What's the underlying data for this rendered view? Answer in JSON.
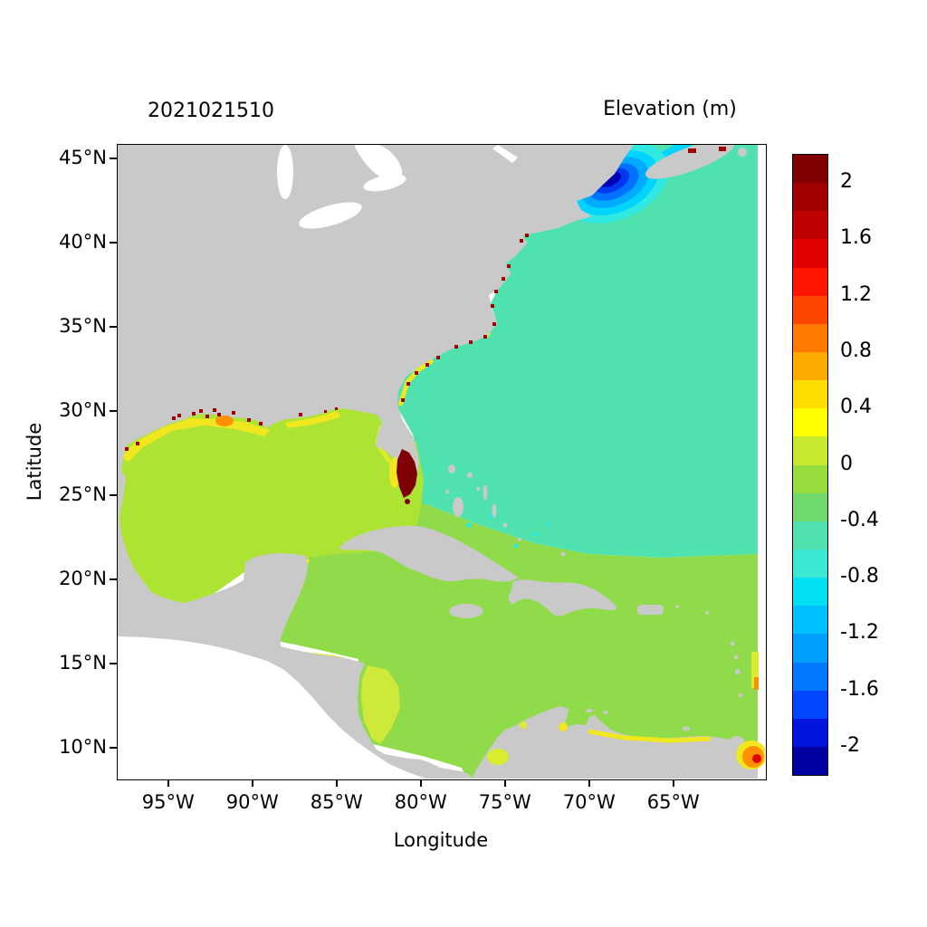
{
  "titles": {
    "timestamp": "2021021510",
    "colorbar_title": "Elevation (m)"
  },
  "axes": {
    "x_label": "Longitude",
    "y_label": "Latitude",
    "x_ticks": [
      {
        "label": "95°W",
        "lon": -95
      },
      {
        "label": "90°W",
        "lon": -90
      },
      {
        "label": "85°W",
        "lon": -85
      },
      {
        "label": "80°W",
        "lon": -80
      },
      {
        "label": "75°W",
        "lon": -75
      },
      {
        "label": "70°W",
        "lon": -70
      },
      {
        "label": "65°W",
        "lon": -65
      }
    ],
    "y_ticks": [
      {
        "label": "45°N",
        "lat": 45
      },
      {
        "label": "40°N",
        "lat": 40
      },
      {
        "label": "35°N",
        "lat": 35
      },
      {
        "label": "30°N",
        "lat": 30
      },
      {
        "label": "25°N",
        "lat": 25
      },
      {
        "label": "20°N",
        "lat": 20
      },
      {
        "label": "15°N",
        "lat": 15
      },
      {
        "label": "10°N",
        "lat": 10
      }
    ]
  },
  "colorbar": {
    "vmin": -2.2,
    "vmax": 2.2,
    "tick_labels": [
      "2",
      "1.6",
      "1.2",
      "0.8",
      "0.4",
      "0",
      "-0.4",
      "-0.8",
      "-1.2",
      "-1.6",
      "-2"
    ],
    "tick_values": [
      2,
      1.6,
      1.2,
      0.8,
      0.4,
      0,
      -0.4,
      -0.8,
      -1.2,
      -1.6,
      -2
    ],
    "segment_colors_top_to_bottom": [
      "#7F0000",
      "#A00000",
      "#C00000",
      "#E00000",
      "#FF1400",
      "#FF4600",
      "#FF7800",
      "#FFAA00",
      "#FFDC00",
      "#FFFF00",
      "#C6E92E",
      "#97DC3F",
      "#6FD96B",
      "#4FE2AF",
      "#3BE8D6",
      "#00E0F0",
      "#00C0FF",
      "#009FFF",
      "#0078FF",
      "#0046FF",
      "#0014E0",
      "#0000A0"
    ]
  },
  "colors": {
    "land": "#C9C9C9",
    "atlantic": "#4FE2AF",
    "caribbean": "#8FDB49",
    "gulf": "#ADE433",
    "shelf_yellow": "#F0E71E",
    "yellow_green": "#D9EC2E",
    "nicaragua_shelf": "#CFE93A",
    "orange": "#FF9000",
    "red": "#E30000",
    "dark_red": "#A00000",
    "maroon": "#7F0000",
    "cyan": "#2BE8E0",
    "maine_blue_1": "#2FE9E2",
    "maine_blue_2": "#00D4FF",
    "maine_blue_3": "#00AAFF",
    "maine_blue_4": "#0072FF",
    "maine_blue_5": "#0038F0",
    "maine_blue_6": "#0000B4",
    "lake_white": "#FFFFFF",
    "background_white": "#FFFFFF"
  },
  "chart_data": {
    "type": "heatmap",
    "title": "2021021510",
    "colorbar_title": "Elevation (m)",
    "xlabel": "Longitude",
    "ylabel": "Latitude",
    "x_range_deg_lon": [
      -98,
      -59.5
    ],
    "y_range_deg_lat": [
      8.2,
      45.8
    ],
    "x_tick_labels": [
      "95°W",
      "90°W",
      "85°W",
      "80°W",
      "75°W",
      "70°W",
      "65°W"
    ],
    "y_tick_labels": [
      "45°N",
      "40°N",
      "35°N",
      "30°N",
      "25°N",
      "20°N",
      "15°N",
      "10°N"
    ],
    "colorbar_ticks": [
      2,
      1.6,
      1.2,
      0.8,
      0.4,
      0,
      -0.4,
      -0.8,
      -1.2,
      -1.6,
      -2
    ],
    "colorbar_range": [
      -2.2,
      2.2
    ],
    "legend_position": "right",
    "grid": false,
    "regions": [
      {
        "name": "Gulf of Mexico",
        "approx_value_m": 0.2
      },
      {
        "name": "Caribbean Sea",
        "approx_value_m": 0.15
      },
      {
        "name": "Tropical Atlantic south of ~21°N",
        "approx_value_m": 0.1
      },
      {
        "name": "Open Atlantic north of ~22°N",
        "approx_value_m": -0.3
      },
      {
        "name": "Gulf of Maine / Bay of Fundy core",
        "approx_value_m": -2.0
      },
      {
        "name": "South Florida wetlands",
        "approx_value_m": 2.2
      },
      {
        "name": "Louisiana coastal marsh",
        "approx_value_m": 1.4
      },
      {
        "name": "Texas-Louisiana shelf fringe",
        "approx_value_m": 0.4
      },
      {
        "name": "Nicaragua shelf",
        "approx_value_m": 0.3
      },
      {
        "name": "Campeche / Yucatan shelf fringe",
        "approx_value_m": 0.4
      },
      {
        "name": "Georgia-Carolinas coastal fringe",
        "approx_value_m": 0.5
      },
      {
        "name": "Venezuela east coast spot",
        "approx_value_m": 1.0
      },
      {
        "name": "Land mask",
        "approx_value_m": null
      },
      {
        "name": "Pacific (no data)",
        "approx_value_m": null
      }
    ]
  }
}
